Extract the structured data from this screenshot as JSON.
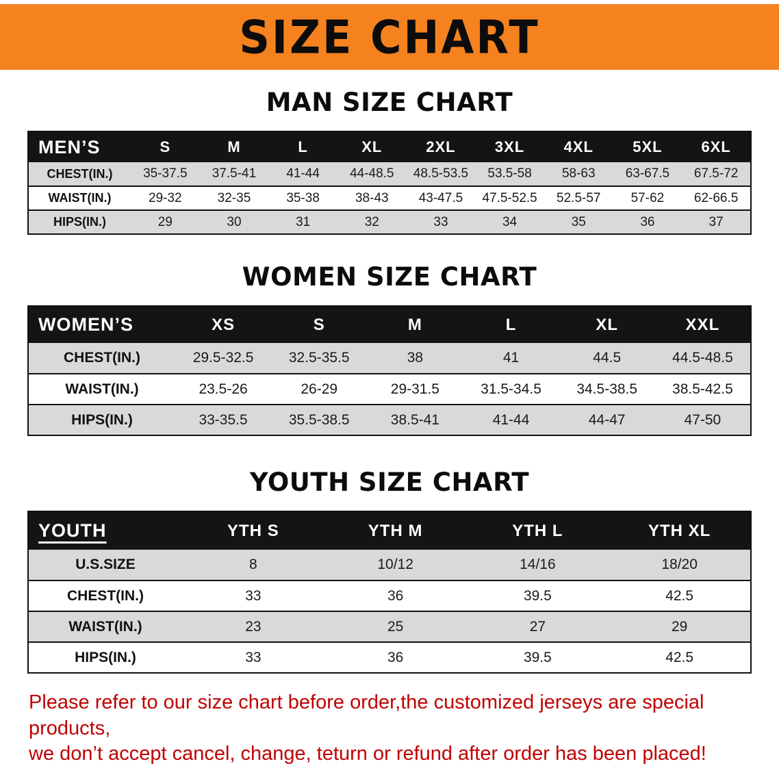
{
  "banner": {
    "title": "SIZE CHART"
  },
  "colors": {
    "banner_orange": "#F5821F",
    "header_black": "#141414",
    "row_gray": "#d9d9d9",
    "disclaimer_red": "#C00000"
  },
  "chart_data": [
    {
      "type": "table",
      "title": "MAN SIZE CHART",
      "columns": [
        "MEN’S",
        "S",
        "M",
        "L",
        "XL",
        "2XL",
        "3XL",
        "4XL",
        "5XL",
        "6XL"
      ],
      "rows": [
        [
          "CHEST(IN.)",
          "35-37.5",
          "37.5-41",
          "41-44",
          "44-48.5",
          "48.5-53.5",
          "53.5-58",
          "58-63",
          "63-67.5",
          "67.5-72"
        ],
        [
          "WAIST(IN.)",
          "29-32",
          "32-35",
          "35-38",
          "38-43",
          "43-47.5",
          "47.5-52.5",
          "52.5-57",
          "57-62",
          "62-66.5"
        ],
        [
          "HIPS(IN.)",
          "29",
          "30",
          "31",
          "32",
          "33",
          "34",
          "35",
          "36",
          "37"
        ]
      ]
    },
    {
      "type": "table",
      "title": "WOMEN SIZE CHART",
      "columns": [
        "WOMEN’S",
        "XS",
        "S",
        "M",
        "L",
        "XL",
        "XXL"
      ],
      "rows": [
        [
          "CHEST(IN.)",
          "29.5-32.5",
          "32.5-35.5",
          "38",
          "41",
          "44.5",
          "44.5-48.5"
        ],
        [
          "WAIST(IN.)",
          "23.5-26",
          "26-29",
          "29-31.5",
          "31.5-34.5",
          "34.5-38.5",
          "38.5-42.5"
        ],
        [
          "HIPS(IN.)",
          "33-35.5",
          "35.5-38.5",
          "38.5-41",
          "41-44",
          "44-47",
          "47-50"
        ]
      ]
    },
    {
      "type": "table",
      "title": "YOUTH SIZE CHART",
      "columns": [
        "YOUTH",
        "YTH S",
        "YTH M",
        "YTH L",
        "YTH XL"
      ],
      "rows": [
        [
          "U.S.SIZE",
          "8",
          "10/12",
          "14/16",
          "18/20"
        ],
        [
          "CHEST(IN.)",
          "33",
          "36",
          "39.5",
          "42.5"
        ],
        [
          "WAIST(IN.)",
          "23",
          "25",
          "27",
          "29"
        ],
        [
          "HIPS(IN.)",
          "33",
          "36",
          "39.5",
          "42.5"
        ]
      ]
    }
  ],
  "disclaimer": {
    "line1": "Please refer to our size chart before order,the customized jerseys are special products,",
    "line2": "we don’t accept cancel, change, teturn or refund after order has been placed!"
  }
}
